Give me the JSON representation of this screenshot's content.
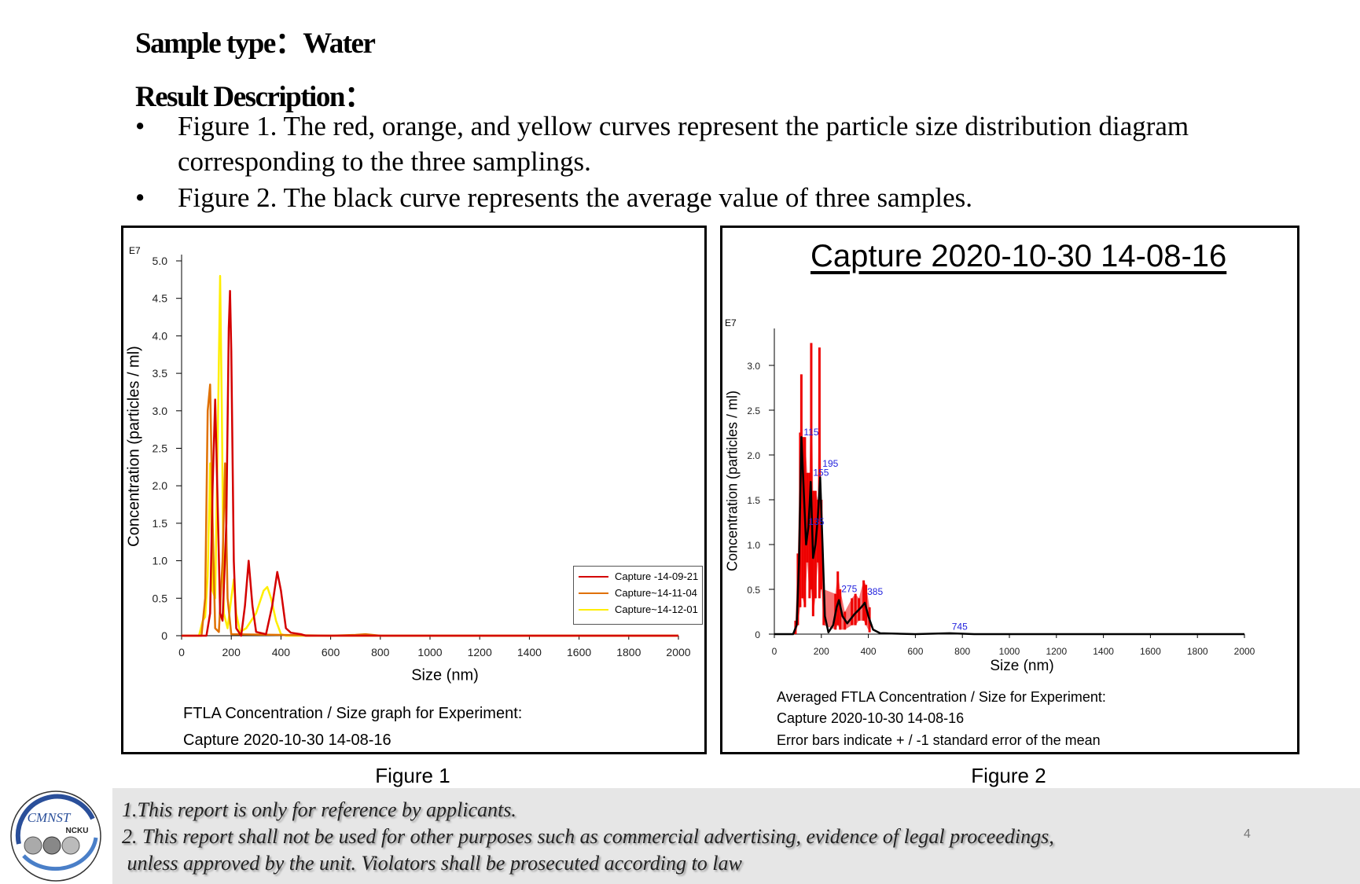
{
  "header": {
    "sample_type": "Sample type：Water",
    "result_description": "Result Description："
  },
  "bullets": [
    {
      "symbol": "•",
      "lines": [
        "Figure 1. The red, orange, and yellow curves represent the particle size distribution diagram",
        "corresponding to the three samplings."
      ]
    },
    {
      "symbol": "•",
      "lines": [
        "Figure 2. The black curve represents the average value of three samples."
      ]
    }
  ],
  "figure1_caption": "Figure 1",
  "figure2_caption": "Figure 2",
  "chart_data": [
    {
      "type": "line",
      "exponent_label": "E7",
      "xlabel": "Size (nm)",
      "ylabel": "Concentration (particles / ml)",
      "xlim": [
        0,
        2000
      ],
      "ylim": [
        0,
        5.0
      ],
      "xticks": [
        0,
        200,
        400,
        600,
        800,
        1000,
        1200,
        1400,
        1600,
        1800,
        2000
      ],
      "yticks": [
        0,
        0.5,
        1.0,
        1.5,
        2.0,
        2.5,
        3.0,
        3.5,
        4.0,
        4.5,
        5.0
      ],
      "grid": false,
      "legend_position": "right",
      "caption": [
        "FTLA Concentration / Size graph for Experiment:",
        "Capture 2020-10-30 14-08-16"
      ],
      "series": [
        {
          "name": "Capture -14-09-21",
          "color": "#d40000",
          "points": [
            [
              0,
              0
            ],
            [
              100,
              0
            ],
            [
              115,
              0.3
            ],
            [
              125,
              2.0
            ],
            [
              135,
              3.15
            ],
            [
              145,
              1.8
            ],
            [
              155,
              0.3
            ],
            [
              165,
              0.2
            ],
            [
              180,
              1.5
            ],
            [
              190,
              4.1
            ],
            [
              195,
              4.6
            ],
            [
              200,
              3.8
            ],
            [
              210,
              1.0
            ],
            [
              220,
              0.1
            ],
            [
              240,
              0
            ],
            [
              255,
              0.4
            ],
            [
              270,
              1.0
            ],
            [
              285,
              0.4
            ],
            [
              300,
              0.05
            ],
            [
              340,
              0.02
            ],
            [
              365,
              0.4
            ],
            [
              385,
              0.85
            ],
            [
              400,
              0.6
            ],
            [
              420,
              0.1
            ],
            [
              440,
              0.04
            ],
            [
              480,
              0.02
            ],
            [
              500,
              0
            ],
            [
              2000,
              0
            ]
          ]
        },
        {
          "name": "Capture~14-11-04",
          "color": "#e07000",
          "points": [
            [
              0,
              0
            ],
            [
              80,
              0
            ],
            [
              95,
              0.5
            ],
            [
              105,
              3.0
            ],
            [
              115,
              3.35
            ],
            [
              125,
              1.5
            ],
            [
              135,
              0.1
            ],
            [
              150,
              0.05
            ],
            [
              165,
              1.0
            ],
            [
              175,
              2.3
            ],
            [
              185,
              0.5
            ],
            [
              200,
              0.02
            ],
            [
              600,
              0
            ],
            [
              700,
              0.01
            ],
            [
              740,
              0.02
            ],
            [
              800,
              0
            ],
            [
              2000,
              0
            ]
          ]
        },
        {
          "name": "Capture~14-12-01",
          "color": "#ffee00",
          "points": [
            [
              0,
              0
            ],
            [
              70,
              0
            ],
            [
              85,
              0.2
            ],
            [
              95,
              0.25
            ],
            [
              105,
              0.8
            ],
            [
              115,
              2.3
            ],
            [
              125,
              0.6
            ],
            [
              135,
              0.5
            ],
            [
              145,
              2.5
            ],
            [
              155,
              4.8
            ],
            [
              162,
              3.0
            ],
            [
              170,
              0.3
            ],
            [
              185,
              0.1
            ],
            [
              200,
              0.5
            ],
            [
              210,
              0.75
            ],
            [
              220,
              0.3
            ],
            [
              235,
              0.05
            ],
            [
              260,
              0.1
            ],
            [
              300,
              0.3
            ],
            [
              330,
              0.6
            ],
            [
              345,
              0.65
            ],
            [
              360,
              0.5
            ],
            [
              380,
              0.2
            ],
            [
              400,
              0.02
            ],
            [
              420,
              0
            ],
            [
              2000,
              0
            ]
          ]
        }
      ]
    },
    {
      "type": "line",
      "title": "Capture 2020-10-30 14-08-16",
      "exponent_label": "E7",
      "xlabel": "Size (nm)",
      "ylabel": "Concentration (particles / ml)",
      "xlim": [
        0,
        2000
      ],
      "ylim": [
        0,
        3.4
      ],
      "xticks": [
        0,
        200,
        400,
        600,
        800,
        1000,
        1200,
        1400,
        1600,
        1800,
        2000
      ],
      "yticks": [
        0,
        0.5,
        1.0,
        1.5,
        2.0,
        2.5,
        3.0
      ],
      "grid": false,
      "caption": [
        "Averaged FTLA Concentration / Size for Experiment:",
        "Capture 2020-10-30 14-08-16",
        "Error bars indicate + / -1 standard error of the mean"
      ],
      "mean_color": "#000000",
      "error_color": "#ee0000",
      "peak_label_color": "#2222dd",
      "mean": [
        [
          0,
          0
        ],
        [
          80,
          0
        ],
        [
          95,
          0.1
        ],
        [
          105,
          0.8
        ],
        [
          115,
          2.2
        ],
        [
          125,
          1.6
        ],
        [
          135,
          1.0
        ],
        [
          145,
          1.2
        ],
        [
          155,
          1.7
        ],
        [
          165,
          0.85
        ],
        [
          175,
          1.0
        ],
        [
          185,
          1.3
        ],
        [
          195,
          1.75
        ],
        [
          205,
          1.0
        ],
        [
          215,
          0.2
        ],
        [
          230,
          0.02
        ],
        [
          250,
          0.1
        ],
        [
          265,
          0.3
        ],
        [
          275,
          0.38
        ],
        [
          290,
          0.2
        ],
        [
          310,
          0.12
        ],
        [
          340,
          0.22
        ],
        [
          370,
          0.3
        ],
        [
          385,
          0.35
        ],
        [
          400,
          0.2
        ],
        [
          420,
          0.05
        ],
        [
          450,
          0.01
        ],
        [
          600,
          0
        ],
        [
          745,
          0.01
        ],
        [
          850,
          0
        ],
        [
          2000,
          0
        ]
      ],
      "error_bars": [
        [
          90,
          0,
          0.15
        ],
        [
          100,
          0.1,
          0.9
        ],
        [
          110,
          0.3,
          2.25
        ],
        [
          115,
          1.4,
          2.9
        ],
        [
          120,
          0.4,
          2.2
        ],
        [
          130,
          0.3,
          2.2
        ],
        [
          140,
          0.8,
          1.8
        ],
        [
          150,
          0.4,
          1.8
        ],
        [
          157,
          0.5,
          3.25
        ],
        [
          165,
          0.2,
          1.6
        ],
        [
          175,
          0.4,
          1.6
        ],
        [
          185,
          0.8,
          1.5
        ],
        [
          192,
          0.4,
          3.2
        ],
        [
          200,
          0.5,
          1.5
        ],
        [
          210,
          0.1,
          0.5
        ],
        [
          260,
          0.05,
          0.45
        ],
        [
          270,
          0.1,
          0.7
        ],
        [
          280,
          0.05,
          0.5
        ],
        [
          300,
          0.05,
          0.25
        ],
        [
          330,
          0.1,
          0.4
        ],
        [
          345,
          0.1,
          0.45
        ],
        [
          360,
          0.15,
          0.4
        ],
        [
          380,
          0.15,
          0.6
        ],
        [
          390,
          0.1,
          0.55
        ],
        [
          405,
          0.02,
          0.3
        ]
      ],
      "peak_labels": [
        {
          "text": "115",
          "x": 115,
          "y": 2.2
        },
        {
          "text": "155",
          "x": 155,
          "y": 1.75
        },
        {
          "text": "195",
          "x": 195,
          "y": 1.85
        },
        {
          "text": "135",
          "x": 135,
          "y": 1.2
        },
        {
          "text": "275",
          "x": 275,
          "y": 0.45
        },
        {
          "text": "385",
          "x": 385,
          "y": 0.42
        },
        {
          "text": "745",
          "x": 745,
          "y": 0.03
        }
      ]
    }
  ],
  "footer": {
    "lines": [
      "1.This report is only for reference by applicants.",
      "2. This report shall not be used for other purposes such as commercial advertising, evidence of legal proceedings,",
      " unless approved by the unit. Violators shall be prosecuted according to law"
    ],
    "page_number": "4",
    "logo_text": [
      "CMNST",
      "NCKU"
    ],
    "logo_color": "#2a4f9a"
  }
}
